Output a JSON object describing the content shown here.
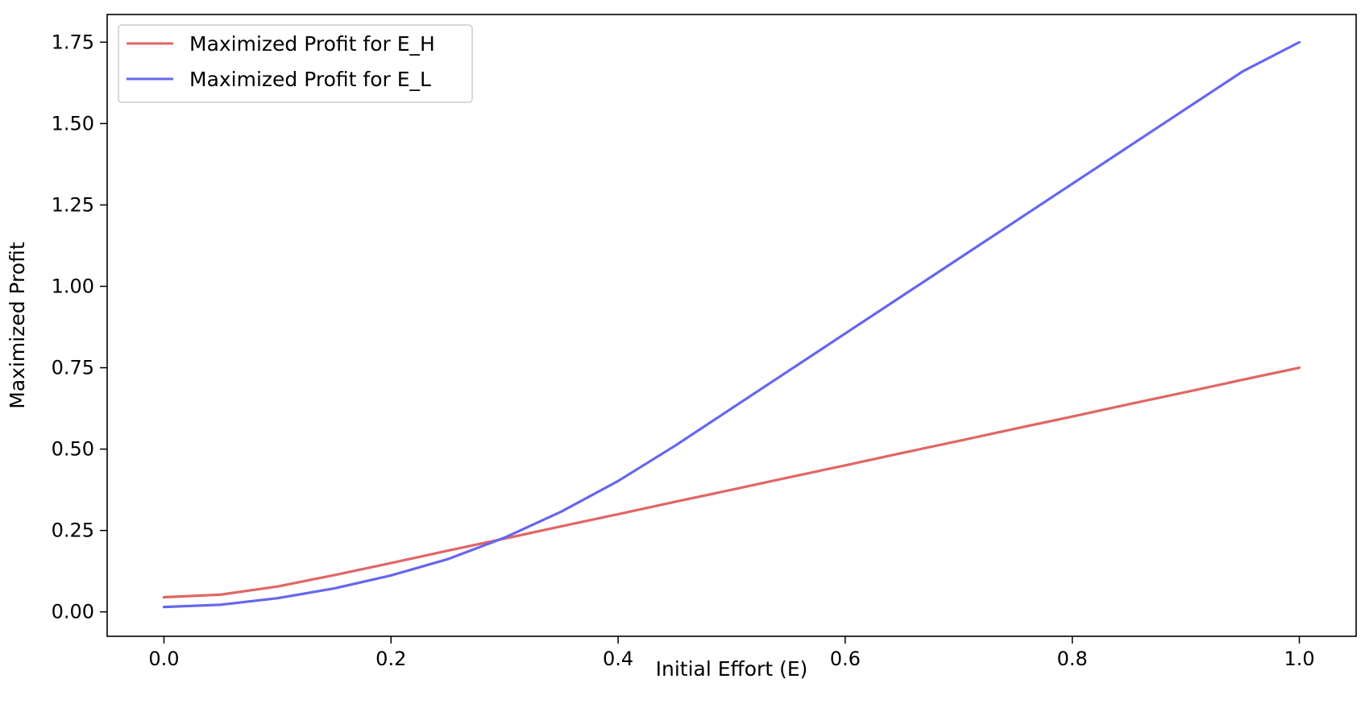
{
  "chart_data": {
    "type": "line",
    "title": "",
    "xlabel": "Initial Effort (E)",
    "ylabel": "Maximized Profit",
    "xlim": [
      -0.05,
      1.05
    ],
    "ylim": [
      -0.075,
      1.835
    ],
    "x_ticks": [
      0.0,
      0.2,
      0.4,
      0.6,
      0.8,
      1.0
    ],
    "x_tick_labels": [
      "0.0",
      "0.2",
      "0.4",
      "0.6",
      "0.8",
      "1.0"
    ],
    "y_ticks": [
      0.0,
      0.25,
      0.5,
      0.75,
      1.0,
      1.25,
      1.5,
      1.75
    ],
    "y_tick_labels": [
      "0.00",
      "0.25",
      "0.50",
      "0.75",
      "1.00",
      "1.25",
      "1.50",
      "1.75"
    ],
    "grid": false,
    "legend_position": "top-left",
    "x": [
      0.0,
      0.05,
      0.1,
      0.15,
      0.2,
      0.25,
      0.3,
      0.35,
      0.4,
      0.45,
      0.5,
      0.55,
      0.6,
      0.65,
      0.7,
      0.75,
      0.8,
      0.85,
      0.9,
      0.95,
      1.0
    ],
    "series": [
      {
        "name": "Maximized Profit for E_H",
        "color": "#e06666",
        "values": [
          0.045,
          0.053,
          0.078,
          0.113,
          0.15,
          0.188,
          0.225,
          0.263,
          0.3,
          0.338,
          0.375,
          0.413,
          0.45,
          0.488,
          0.525,
          0.563,
          0.6,
          0.638,
          0.675,
          0.713,
          0.75
        ]
      },
      {
        "name": "Maximized Profit for E_L",
        "color": "#6666ee",
        "values": [
          0.015,
          0.022,
          0.042,
          0.072,
          0.112,
          0.162,
          0.228,
          0.308,
          0.402,
          0.51,
          0.625,
          0.74,
          0.855,
          0.97,
          1.085,
          1.2,
          1.315,
          1.43,
          1.545,
          1.66,
          1.75
        ]
      }
    ]
  }
}
